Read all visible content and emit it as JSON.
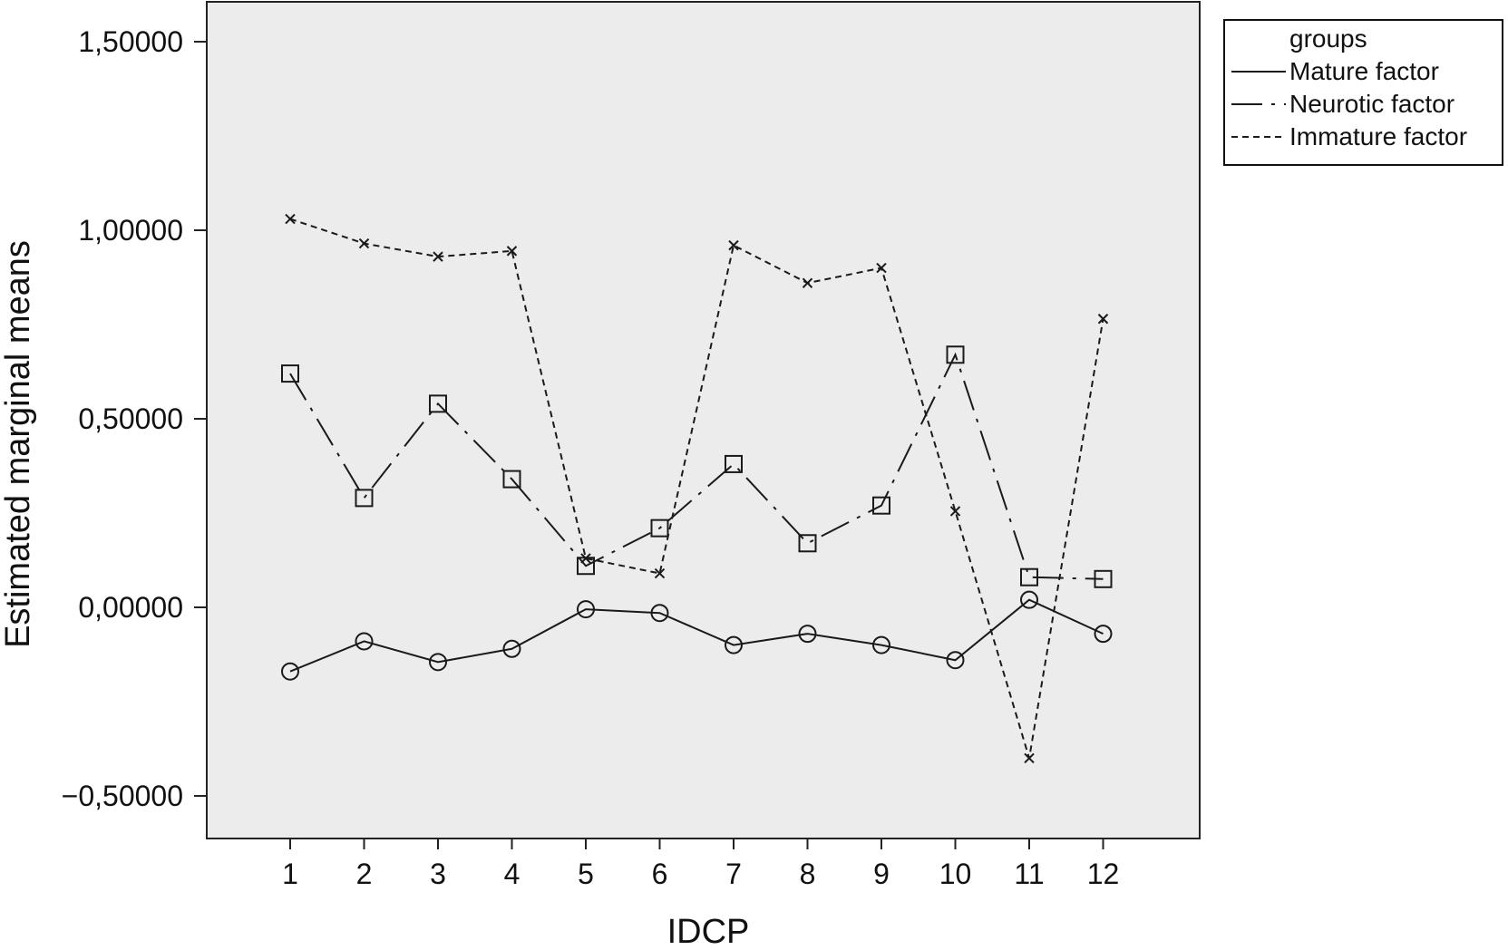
{
  "chart_data": {
    "type": "line",
    "xlabel": "IDCP",
    "ylabel": "Estimated marginal means",
    "categories": [
      "1",
      "2",
      "3",
      "4",
      "5",
      "6",
      "7",
      "8",
      "9",
      "10",
      "11",
      "12"
    ],
    "ylim": [
      -0.6,
      1.6
    ],
    "yticks": [
      -0.5,
      0.0,
      0.5,
      1.0,
      1.5
    ],
    "ytick_labels": [
      "−0,50000",
      "0,00000",
      "0,50000",
      "1,00000",
      "1,50000"
    ],
    "grid": false,
    "legend": {
      "title": "groups",
      "position": "outside-top-right"
    },
    "series": [
      {
        "name": "Mature factor",
        "line_style": "solid",
        "marker": "circle",
        "values": [
          -0.17,
          -0.09,
          -0.145,
          -0.11,
          -0.005,
          -0.015,
          -0.1,
          -0.07,
          -0.1,
          -0.14,
          0.02,
          -0.07
        ]
      },
      {
        "name": "Neurotic factor",
        "line_style": "dash-dot",
        "marker": "square",
        "values": [
          0.62,
          0.29,
          0.54,
          0.34,
          0.11,
          0.21,
          0.38,
          0.17,
          0.27,
          0.67,
          0.08,
          0.075
        ]
      },
      {
        "name": "Immature factor",
        "line_style": "dotted",
        "marker": "x",
        "values": [
          1.03,
          0.965,
          0.93,
          0.945,
          0.13,
          0.09,
          0.96,
          0.86,
          0.9,
          0.255,
          -0.4,
          0.765
        ]
      }
    ],
    "colors": {
      "plot_background": "#ececec",
      "lines": "#1a1a1a"
    }
  }
}
